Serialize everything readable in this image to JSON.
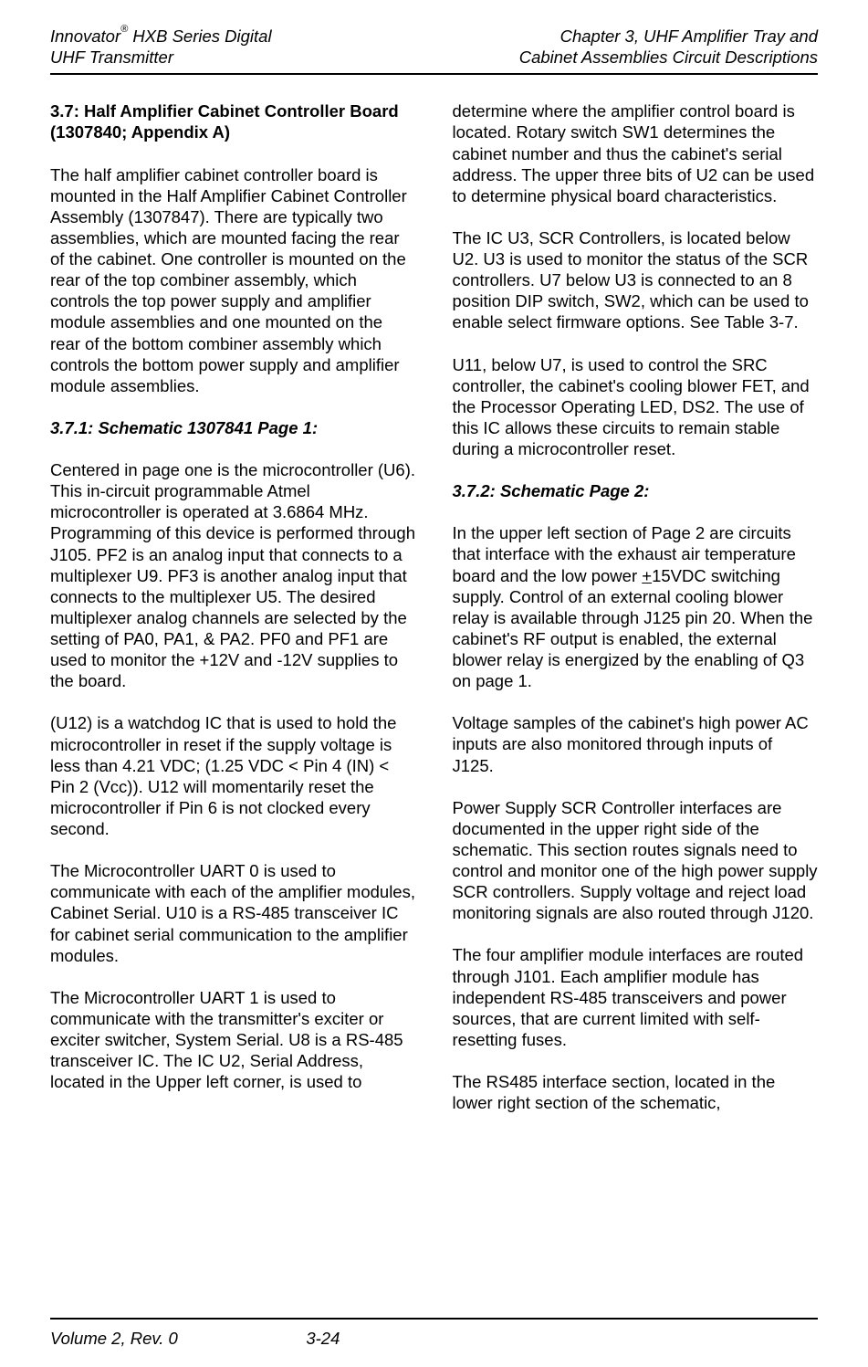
{
  "header": {
    "left_line1_a": "Innovator",
    "left_line1_sup": "®",
    "left_line1_b": " HXB Series Digital",
    "left_line2": "UHF Transmitter",
    "right_line1": "Chapter 3, UHF Amplifier Tray and",
    "right_line2": "Cabinet Assemblies Circuit Descriptions"
  },
  "sections": {
    "s37_title": "3.7: Half Amplifier Cabinet Controller Board (1307840; Appendix A)",
    "p1": "The half amplifier cabinet controller board is mounted in the Half Amplifier Cabinet Controller Assembly (1307847). There are typically two assemblies, which are mounted facing the rear of the cabinet.  One controller is mounted on the rear of the top combiner assembly, which controls the top power supply and amplifier module assemblies and one mounted on the rear of the bottom combiner assembly which controls the bottom power supply and amplifier module assemblies.",
    "s371_title": "3.7.1: Schematic 1307841 Page 1:",
    "p2": "Centered in page one is the microcontroller (U6).  This in-circuit programmable Atmel microcontroller is operated at 3.6864 MHz.  Programming of this device is performed through J105.  PF2 is an analog input that connects to a multiplexer U9.  PF3 is another analog input that connects to the multiplexer U5.  The desired multiplexer analog channels are selected by the setting of PA0, PA1, & PA2.  PF0 and PF1 are used to monitor the +12V and -12V supplies to the board.",
    "p3": "(U12) is a watchdog IC that is used to hold the microcontroller in reset if the supply voltage is less than 4.21 VDC; (1.25 VDC < Pin 4 (IN) < Pin 2 (Vcc)). U12 will momentarily reset the microcontroller if Pin 6 is not clocked every second.",
    "p4": "The Microcontroller UART 0 is used to communicate with each of the amplifier modules, Cabinet Serial.  U10 is a RS-485 transceiver IC for cabinet serial communication to the amplifier modules.",
    "p5": "The Microcontroller UART 1 is used to communicate with the transmitter's exciter or exciter switcher, System Serial.  U8 is a RS-485 transceiver IC. The IC U2, Serial Address, located in the Upper left corner, is used to determine where the amplifier control board is located.  Rotary switch SW1 determines the cabinet number and thus the cabinet's serial address.  The upper three bits of U2 can be used to determine physical board characteristics.",
    "p6": "The IC U3, SCR Controllers, is located below U2.  U3 is used to monitor the status of the SCR controllers.  U7 below U3 is connected to an 8 position DIP switch, SW2, which can be used to enable select firmware options.  See Table 3-7.",
    "p7": "U11, below U7, is used to control the SRC controller, the cabinet's cooling blower FET, and the Processor Operating LED, DS2.  The use of this IC allows these circuits to remain stable during a microcontroller reset.",
    "s372_title": "3.7.2: Schematic Page 2:",
    "p8a": "In the upper left section of Page 2 are circuits that interface with the exhaust air temperature board and the low power ",
    "p8b": "+",
    "p8c": "15VDC switching supply.  Control of an external cooling blower relay is available through J125 pin 20.  When the cabinet's RF output is enabled, the external blower relay is energized by the enabling of Q3 on page 1.",
    "p9": "Voltage samples of the cabinet's high power AC inputs are also monitored through inputs of J125.",
    "p10": "Power Supply SCR Controller interfaces are documented in the upper right side of the schematic.  This section routes signals need to control and monitor one of the high power supply SCR controllers.  Supply voltage and reject load monitoring signals are also routed through J120.",
    "p11": "The four amplifier module interfaces are routed through J101.  Each amplifier module has independent RS-485 transceivers and power sources, that are current limited with self-resetting fuses.",
    "p12": "The RS485 interface section, located in the lower right section of the schematic,"
  },
  "footer": {
    "left": "Volume 2, Rev. 0",
    "center": "3-24"
  }
}
